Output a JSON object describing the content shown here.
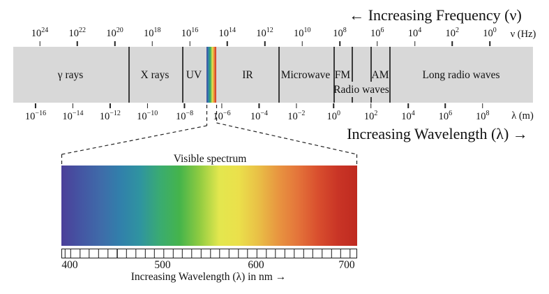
{
  "diagram": {
    "top_caption": "← Increasing Frequency (ν)",
    "bottom_caption": "Increasing Wavelength (λ) →"
  },
  "frequency_axis": {
    "unit": "ν (Hz)",
    "ticks": [
      {
        "b": "10",
        "e": "24"
      },
      {
        "b": "10",
        "e": "22"
      },
      {
        "b": "10",
        "e": "20"
      },
      {
        "b": "10",
        "e": "18"
      },
      {
        "b": "10",
        "e": "16"
      },
      {
        "b": "10",
        "e": "14"
      },
      {
        "b": "10",
        "e": "12"
      },
      {
        "b": "10",
        "e": "10"
      },
      {
        "b": "10",
        "e": "8"
      },
      {
        "b": "10",
        "e": "6"
      },
      {
        "b": "10",
        "e": "4"
      },
      {
        "b": "10",
        "e": "2"
      },
      {
        "b": "10",
        "e": "0"
      }
    ]
  },
  "wavelength_axis": {
    "unit": "λ (m)",
    "ticks": [
      {
        "b": "10",
        "e": "−16"
      },
      {
        "b": "10",
        "e": "−14"
      },
      {
        "b": "10",
        "e": "−12"
      },
      {
        "b": "10",
        "e": "−10"
      },
      {
        "b": "10",
        "e": "−8"
      },
      {
        "b": "10",
        "e": "−6"
      },
      {
        "b": "10",
        "e": "−4"
      },
      {
        "b": "10",
        "e": "−2"
      },
      {
        "b": "10",
        "e": "0"
      },
      {
        "b": "10",
        "e": "2"
      },
      {
        "b": "10",
        "e": "4"
      },
      {
        "b": "10",
        "e": "6"
      },
      {
        "b": "10",
        "e": "8"
      }
    ]
  },
  "band": {
    "bg_color": "#d8d8d8",
    "regions": {
      "gamma": "γ rays",
      "xray": "X rays",
      "uv": "UV",
      "ir": "IR",
      "microwave": "Microwave",
      "fm": "FM",
      "am": "AM",
      "radio": "Radio waves",
      "long_radio": "Long radio waves"
    },
    "strip_gradient": [
      "#4347a0",
      "#2e86ab",
      "#3aa95c",
      "#e8e44e",
      "#e8833c",
      "#d02f24"
    ]
  },
  "visible": {
    "label": "Visible spectrum",
    "caption": "Increasing Wavelength (λ) in nm →",
    "scale_ticks": [
      "400",
      "500",
      "600",
      "700"
    ],
    "gradient": [
      "#4b3f99",
      "#4456a3",
      "#3f6ba9",
      "#3180ab",
      "#2f94a0",
      "#3aab71",
      "#45b44b",
      "#8fcb41",
      "#e3e74e",
      "#ebe04b",
      "#e9bf46",
      "#e89540",
      "#e4743a",
      "#d94f2e",
      "#c93526",
      "#bf2a20"
    ]
  }
}
